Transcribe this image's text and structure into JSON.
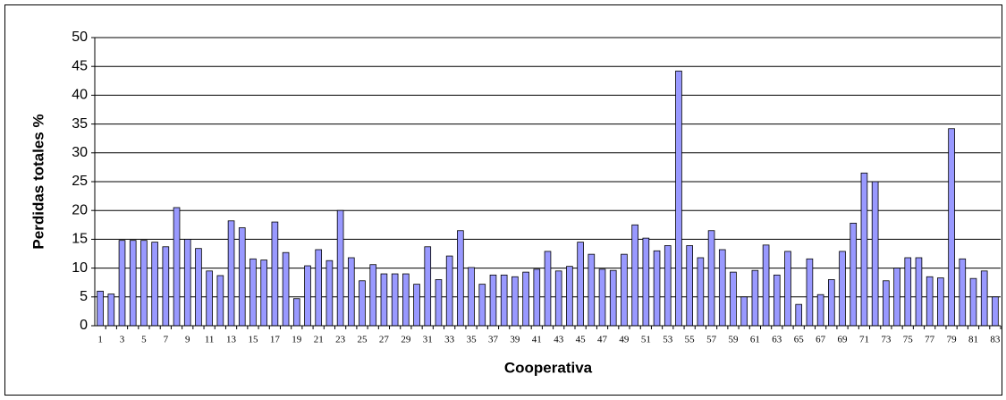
{
  "chart_data": {
    "type": "bar",
    "x_label": "Cooperativa",
    "y_label": "Perdidas totales %",
    "categories": [
      1,
      null,
      3,
      null,
      5,
      null,
      7,
      null,
      9,
      null,
      11,
      null,
      13,
      null,
      15,
      null,
      17,
      null,
      19,
      null,
      21,
      null,
      23,
      null,
      25,
      null,
      27,
      null,
      29,
      null,
      31,
      null,
      33,
      null,
      35,
      null,
      37,
      null,
      39,
      null,
      41,
      null,
      43,
      null,
      45,
      null,
      47,
      null,
      49,
      null,
      51,
      null,
      53,
      null,
      55,
      null,
      57,
      null,
      59,
      null,
      61,
      null,
      63,
      null,
      65,
      null,
      67,
      null,
      69,
      null,
      71,
      null,
      73,
      null,
      75,
      null,
      77,
      null,
      79,
      null,
      81,
      null,
      83
    ],
    "values": [
      6,
      5.5,
      14.8,
      14.8,
      14.8,
      14.5,
      13.7,
      20.5,
      15,
      13.4,
      9.5,
      8.7,
      18.2,
      17,
      11.6,
      11.4,
      18,
      12.7,
      4.7,
      10.4,
      13.2,
      11.3,
      20,
      11.8,
      7.8,
      10.6,
      9,
      9,
      9,
      7.2,
      13.7,
      8,
      12.1,
      16.5,
      10.1,
      7.2,
      8.8,
      8.8,
      8.5,
      9.3,
      9.8,
      12.9,
      9.5,
      10.3,
      14.5,
      12.4,
      9.8,
      9.6,
      12.4,
      17.5,
      15.2,
      13,
      13.9,
      44.2,
      13.9,
      11.8,
      16.5,
      13.2,
      9.3,
      5,
      9.6,
      14,
      8.8,
      12.9,
      3.7,
      11.6,
      5.4,
      8,
      12.9,
      17.8,
      26.5,
      25,
      7.8,
      10,
      11.8,
      11.8,
      8.5,
      8.3,
      34.2,
      11.6,
      8.2,
      9.5,
      5
    ],
    "color": "#9999ff",
    "ylim": [
      0,
      50
    ],
    "yticks": [
      0,
      5,
      10,
      15,
      20,
      25,
      30,
      35,
      40,
      45,
      50
    ],
    "grid": true
  }
}
